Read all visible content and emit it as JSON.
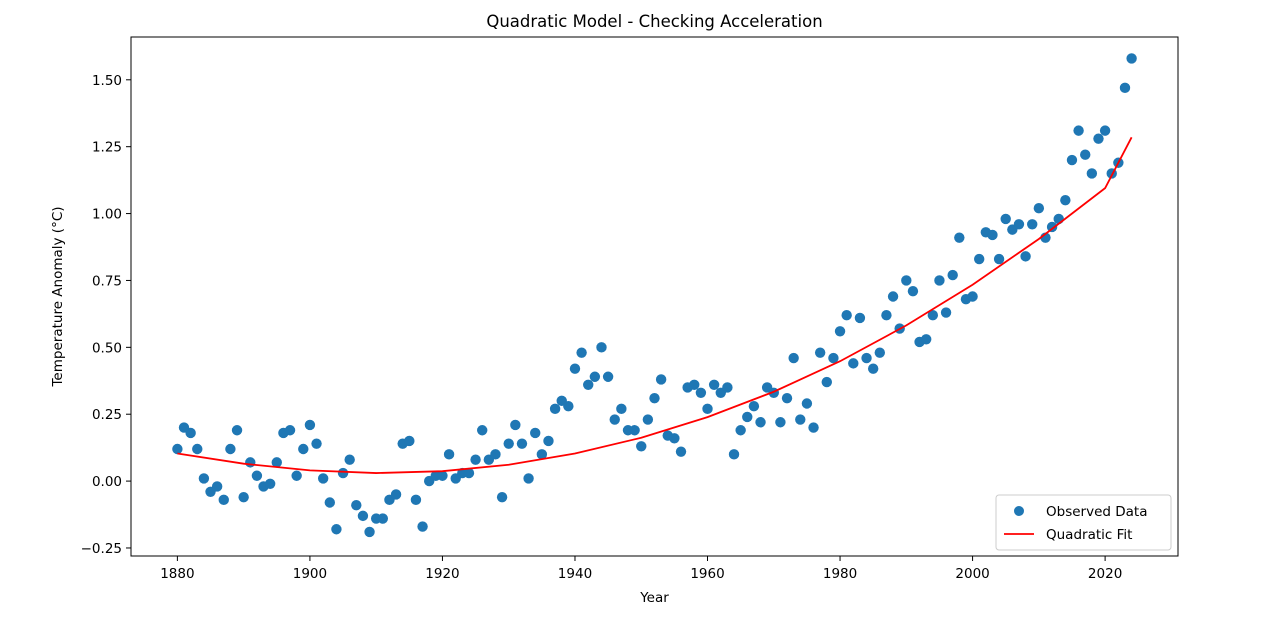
{
  "chart_data": {
    "type": "scatter",
    "title": "Quadratic Model - Checking Acceleration",
    "xlabel": "Year",
    "ylabel": "Temperature Anomaly (°C)",
    "xlim": [
      1873,
      2031
    ],
    "ylim": [
      -0.28,
      1.66
    ],
    "x_ticks": [
      1880,
      1900,
      1920,
      1940,
      1960,
      1980,
      2000,
      2020
    ],
    "x_tick_labels": [
      "1880",
      "1900",
      "1920",
      "1940",
      "1960",
      "1980",
      "2000",
      "2020"
    ],
    "y_ticks": [
      -0.25,
      0.0,
      0.25,
      0.5,
      0.75,
      1.0,
      1.25,
      1.5
    ],
    "y_tick_labels": [
      "−0.25",
      "0.00",
      "0.25",
      "0.50",
      "0.75",
      "1.00",
      "1.25",
      "1.50"
    ],
    "grid": false,
    "legend_placement": "lower-right",
    "series": [
      {
        "name": "Observed Data",
        "kind": "scatter",
        "color": "#1f77b4",
        "x": [
          1880,
          1881,
          1882,
          1883,
          1884,
          1885,
          1886,
          1887,
          1888,
          1889,
          1890,
          1891,
          1892,
          1893,
          1894,
          1895,
          1896,
          1897,
          1898,
          1899,
          1900,
          1901,
          1902,
          1903,
          1904,
          1905,
          1906,
          1907,
          1908,
          1909,
          1910,
          1911,
          1912,
          1913,
          1914,
          1915,
          1916,
          1917,
          1918,
          1919,
          1920,
          1921,
          1922,
          1923,
          1924,
          1925,
          1926,
          1927,
          1928,
          1929,
          1930,
          1931,
          1932,
          1933,
          1934,
          1935,
          1936,
          1937,
          1938,
          1939,
          1940,
          1941,
          1942,
          1943,
          1944,
          1945,
          1946,
          1947,
          1948,
          1949,
          1950,
          1951,
          1952,
          1953,
          1954,
          1955,
          1956,
          1957,
          1958,
          1959,
          1960,
          1961,
          1962,
          1963,
          1964,
          1965,
          1966,
          1967,
          1968,
          1969,
          1970,
          1971,
          1972,
          1973,
          1974,
          1975,
          1976,
          1977,
          1978,
          1979,
          1980,
          1981,
          1982,
          1983,
          1984,
          1985,
          1986,
          1987,
          1988,
          1989,
          1990,
          1991,
          1992,
          1993,
          1994,
          1995,
          1996,
          1997,
          1998,
          1999,
          2000,
          2001,
          2002,
          2003,
          2004,
          2005,
          2006,
          2007,
          2008,
          2009,
          2010,
          2011,
          2012,
          2013,
          2014,
          2015,
          2016,
          2017,
          2018,
          2019,
          2020,
          2021,
          2022,
          2023,
          2024
        ],
        "y": [
          0.12,
          0.2,
          0.18,
          0.12,
          0.01,
          -0.04,
          -0.02,
          -0.07,
          0.12,
          0.19,
          -0.06,
          0.07,
          0.02,
          -0.02,
          -0.01,
          0.07,
          0.18,
          0.19,
          0.02,
          0.12,
          0.21,
          0.14,
          0.01,
          -0.08,
          -0.18,
          0.03,
          0.08,
          -0.09,
          -0.13,
          -0.19,
          -0.14,
          -0.14,
          -0.07,
          -0.05,
          0.14,
          0.15,
          -0.07,
          -0.17,
          0.0,
          0.02,
          0.02,
          0.1,
          0.01,
          0.03,
          0.03,
          0.08,
          0.19,
          0.08,
          0.1,
          -0.06,
          0.14,
          0.21,
          0.14,
          0.01,
          0.18,
          0.1,
          0.15,
          0.27,
          0.3,
          0.28,
          0.42,
          0.48,
          0.36,
          0.39,
          0.5,
          0.39,
          0.23,
          0.27,
          0.19,
          0.19,
          0.13,
          0.23,
          0.31,
          0.38,
          0.17,
          0.16,
          0.11,
          0.35,
          0.36,
          0.33,
          0.27,
          0.36,
          0.33,
          0.35,
          0.1,
          0.19,
          0.24,
          0.28,
          0.22,
          0.35,
          0.33,
          0.22,
          0.31,
          0.46,
          0.23,
          0.29,
          0.2,
          0.48,
          0.37,
          0.46,
          0.56,
          0.62,
          0.44,
          0.61,
          0.46,
          0.42,
          0.48,
          0.62,
          0.69,
          0.57,
          0.75,
          0.71,
          0.52,
          0.53,
          0.62,
          0.75,
          0.63,
          0.77,
          0.91,
          0.68,
          0.69,
          0.83,
          0.93,
          0.92,
          0.83,
          0.98,
          0.94,
          0.96,
          0.84,
          0.96,
          1.02,
          0.91,
          0.95,
          0.98,
          1.05,
          1.2,
          1.31,
          1.22,
          1.15,
          1.28,
          1.31,
          1.15,
          1.19,
          1.47,
          1.58
        ]
      },
      {
        "name": "Quadratic Fit",
        "kind": "line",
        "color": "#ff0000",
        "x": [
          1880,
          1890,
          1900,
          1910,
          1920,
          1930,
          1940,
          1950,
          1960,
          1970,
          1980,
          1990,
          2000,
          2010,
          2020,
          2024
        ],
        "y": [
          0.103,
          0.065,
          0.04,
          0.03,
          0.037,
          0.061,
          0.103,
          0.162,
          0.239,
          0.334,
          0.448,
          0.582,
          0.734,
          0.905,
          1.095,
          1.285
        ]
      }
    ]
  }
}
